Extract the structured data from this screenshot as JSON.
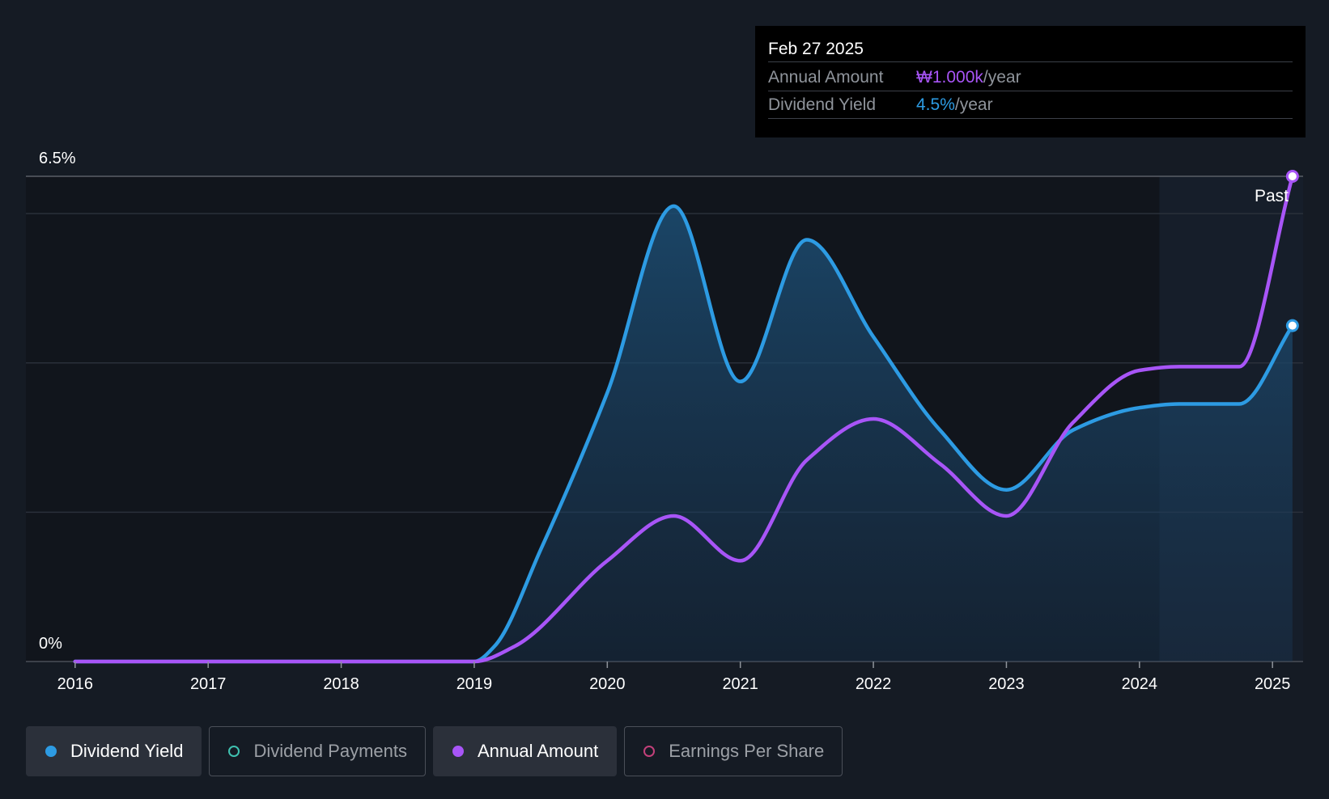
{
  "chart_data": {
    "type": "area",
    "y_axis_labels": [
      "6.5%",
      "0%"
    ],
    "ylim": [
      0,
      6.5
    ],
    "x_ticks": [
      "2016",
      "2017",
      "2018",
      "2019",
      "2020",
      "2021",
      "2022",
      "2023",
      "2024",
      "2025"
    ],
    "x_tick_values": [
      2016,
      2017,
      2018,
      2019,
      2020,
      2021,
      2022,
      2023,
      2024,
      2025
    ],
    "xlim": [
      2015.63,
      2025.23
    ],
    "past_label": "Past",
    "series": [
      {
        "name": "Dividend Yield",
        "color": "#2d9be3",
        "x": [
          2016.0,
          2019.0,
          2019.15,
          2019.5,
          2020.0,
          2020.5,
          2021.0,
          2021.5,
          2022.0,
          2022.5,
          2023.0,
          2023.5,
          2024.0,
          2024.3,
          2024.75,
          2025.15
        ],
        "y": [
          0,
          0,
          0.2,
          1.5,
          3.6,
          6.1,
          3.75,
          5.65,
          4.35,
          3.1,
          2.3,
          3.1,
          3.4,
          3.45,
          3.45,
          4.5
        ]
      },
      {
        "name": "Annual Amount",
        "color": "#a855f7",
        "x": [
          2016.0,
          2019.0,
          2019.3,
          2020.0,
          2020.5,
          2021.0,
          2021.5,
          2022.0,
          2022.5,
          2023.0,
          2023.5,
          2024.0,
          2024.3,
          2024.75,
          2025.15
        ],
        "y": [
          0,
          0,
          0.2,
          1.35,
          1.95,
          1.35,
          2.7,
          3.25,
          2.65,
          1.95,
          3.2,
          3.9,
          3.95,
          3.95,
          6.5
        ]
      }
    ],
    "forecast_start": 2024.15
  },
  "tooltip": {
    "date": "Feb 27 2025",
    "rows": [
      {
        "label": "Annual Amount",
        "value": "₩1.000k",
        "unit": "/year"
      },
      {
        "label": "Dividend Yield",
        "value": "4.5%",
        "unit": "/year"
      }
    ]
  },
  "legend": [
    {
      "label": "Dividend Yield",
      "color": "#2d9be3",
      "active": true
    },
    {
      "label": "Dividend Payments",
      "color": "#3fc1b0",
      "active": false
    },
    {
      "label": "Annual Amount",
      "color": "#a855f7",
      "active": true
    },
    {
      "label": "Earnings Per Share",
      "color": "#c2407a",
      "active": false
    }
  ]
}
